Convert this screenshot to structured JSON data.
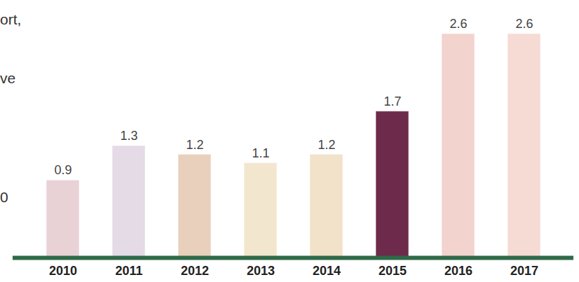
{
  "chart_data": {
    "type": "bar",
    "categories": [
      "2010",
      "2011",
      "2012",
      "2013",
      "2014",
      "2015",
      "2016",
      "2017"
    ],
    "values": [
      0.9,
      1.3,
      1.2,
      1.1,
      1.2,
      1.7,
      2.6,
      2.6
    ],
    "colors": [
      "#e9d2d6",
      "#e4dbe6",
      "#e8d0bc",
      "#f3e6cf",
      "#f1e2c9",
      "#6e2a4a",
      "#f2d3cd",
      "#f6dad4"
    ],
    "ylim": [
      0,
      2.6
    ],
    "data_labels": true,
    "tick_labels": "x",
    "annotations": [
      "ort,",
      "ve",
      "0"
    ]
  }
}
